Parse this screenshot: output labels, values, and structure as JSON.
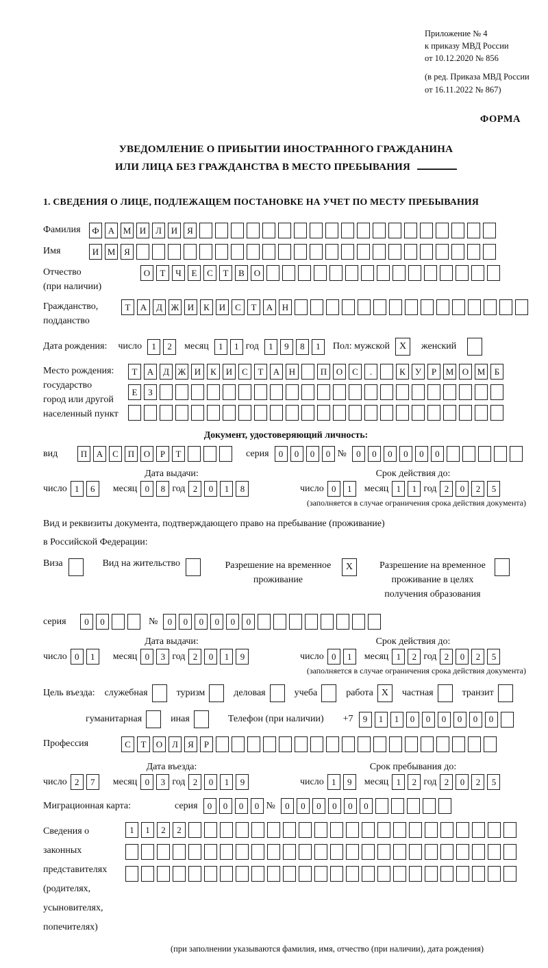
{
  "header": {
    "appendix_lines": [
      "Приложение № 4",
      "к приказу МВД России",
      "от 10.12.2020 № 856"
    ],
    "edit_lines": [
      "(в ред. Приказа МВД России",
      "от 16.11.2022 № 867)"
    ],
    "forma": "ФОРМА"
  },
  "title": {
    "line1": "УВЕДОМЛЕНИЕ О ПРИБЫТИИ ИНОСТРАННОГО ГРАЖДАНИНА",
    "line2": "ИЛИ ЛИЦА БЕЗ ГРАЖДАНСТВА В МЕСТО ПРЕБЫВАНИЯ"
  },
  "section1_heading": "1. СВЕДЕНИЯ О ЛИЦЕ, ПОДЛЕЖАЩЕМ ПОСТАНОВКЕ НА УЧЕТ ПО МЕСТУ ПРЕБЫВАНИЯ",
  "fields": {
    "surname": {
      "label": "Фамилия",
      "cells": 26,
      "value": "ФАМИЛИЯ"
    },
    "name": {
      "label": "Имя",
      "cells": 26,
      "value": "ИМЯ"
    },
    "patronymic": {
      "label1": "Отчество",
      "label2": "(при наличии)",
      "cells": 23,
      "value": "ОТЧЕСТВО"
    },
    "citizenship": {
      "label1": "Гражданство,",
      "label2": "подданство",
      "cells": 26,
      "value": "ТАДЖИКИСТАН"
    },
    "birth_date": {
      "label": "Дата рождения:",
      "day_label": "число",
      "day": {
        "cells": 2,
        "value": "12"
      },
      "month_label": "месяц",
      "month": {
        "cells": 2,
        "value": "11"
      },
      "year_label": "год",
      "year": {
        "cells": 4,
        "value": "1981"
      }
    },
    "sex": {
      "label": "Пол:",
      "male_label": "мужской",
      "male": "X",
      "female_label": "женский",
      "female": ""
    },
    "birth_place": {
      "label_lines": [
        "Место рождения:",
        "государство",
        "город или другой",
        "населенный пункт"
      ],
      "rows": [
        {
          "cells": 24,
          "value": "ТАДЖИКИСТАН ПОС. КУРМОМБ"
        },
        {
          "cells": 24,
          "value": "ЕЗ"
        },
        {
          "cells": 24,
          "value": ""
        }
      ]
    }
  },
  "identity_doc": {
    "section_title": "Документ, удостоверяющий личность:",
    "kind_label": "вид",
    "kind": {
      "cells": 10,
      "value": "ПАСПОРТ"
    },
    "series_label": "серия",
    "series": {
      "cells": 4,
      "value": "0000"
    },
    "number_label": "№",
    "number": {
      "cells": 11,
      "value": "000000"
    },
    "issue": {
      "title": "Дата выдачи:",
      "day_label": "число",
      "day": {
        "cells": 2,
        "value": "16"
      },
      "month_label": "месяц",
      "month": {
        "cells": 2,
        "value": "08"
      },
      "year_label": "год",
      "year": {
        "cells": 4,
        "value": "2018"
      }
    },
    "valid": {
      "title": "Срок действия до:",
      "day_label": "число",
      "day": {
        "cells": 2,
        "value": "01"
      },
      "month_label": "месяц",
      "month": {
        "cells": 2,
        "value": "11"
      },
      "year_label": "год",
      "year": {
        "cells": 4,
        "value": "2025"
      }
    },
    "footnote": "(заполняется в случае ограничения срока действия документа)"
  },
  "residence_doc": {
    "intro_line1": "Вид и реквизиты документа, подтверждающего право на пребывание (проживание)",
    "intro_line2": "в Российской Федерации:",
    "options": [
      {
        "label": "Виза",
        "checked": ""
      },
      {
        "label": "Вид на жительство",
        "checked": ""
      },
      {
        "label": "Разрешение на временное проживание",
        "checked": "X"
      },
      {
        "label": "Разрешение на временное проживание в целях получения образования",
        "checked": ""
      }
    ],
    "series_label": "серия",
    "series": {
      "cells": 4,
      "value": "00"
    },
    "number_label": "№",
    "number": {
      "cells": 14,
      "value": "000000"
    },
    "issue": {
      "title": "Дата выдачи:",
      "day_label": "число",
      "day": {
        "cells": 2,
        "value": "01"
      },
      "month_label": "месяц",
      "month": {
        "cells": 2,
        "value": "03"
      },
      "year_label": "год",
      "year": {
        "cells": 4,
        "value": "2019"
      }
    },
    "valid": {
      "title": "Срок действия до:",
      "day_label": "число",
      "day": {
        "cells": 2,
        "value": "01"
      },
      "month_label": "месяц",
      "month": {
        "cells": 2,
        "value": "12"
      },
      "year_label": "год",
      "year": {
        "cells": 4,
        "value": "2025"
      }
    },
    "footnote": "(заполняется в случае ограничения срока действия документа)"
  },
  "visit_purpose": {
    "label": "Цель въезда:",
    "row1": [
      {
        "label": "служебная",
        "checked": ""
      },
      {
        "label": "туризм",
        "checked": ""
      },
      {
        "label": "деловая",
        "checked": ""
      },
      {
        "label": "учеба",
        "checked": ""
      },
      {
        "label": "работа",
        "checked": "X"
      },
      {
        "label": "частная",
        "checked": ""
      },
      {
        "label": "транзит",
        "checked": ""
      }
    ],
    "row2": [
      {
        "label": "гуманитарная",
        "checked": ""
      },
      {
        "label": "иная",
        "checked": ""
      }
    ],
    "phone_label": "Телефон (при наличии)",
    "phone_prefix": "+7",
    "phone": {
      "cells": 10,
      "value": "911000000"
    }
  },
  "profession": {
    "label": "Профессия",
    "cells": 24,
    "value": "СТОЛЯР"
  },
  "entry": {
    "issue": {
      "title": "Дата въезда:",
      "day_label": "число",
      "day": {
        "cells": 2,
        "value": "27"
      },
      "month_label": "месяц",
      "month": {
        "cells": 2,
        "value": "03"
      },
      "year_label": "год",
      "year": {
        "cells": 4,
        "value": "2019"
      }
    },
    "valid": {
      "title": "Срок пребывания до:",
      "day_label": "число",
      "day": {
        "cells": 2,
        "value": "19"
      },
      "month_label": "месяц",
      "month": {
        "cells": 2,
        "value": "12"
      },
      "year_label": "год",
      "year": {
        "cells": 4,
        "value": "2025"
      }
    }
  },
  "migration_card": {
    "label": "Миграционная карта:",
    "series_label": "серия",
    "series": {
      "cells": 4,
      "value": "0000"
    },
    "number_label": "№",
    "number": {
      "cells": 11,
      "value": "000000"
    }
  },
  "representatives": {
    "label_lines": [
      "Сведения о",
      "законных",
      "представителях",
      "(родителях,",
      "усыновителях,",
      "попечителях)"
    ],
    "rows": [
      {
        "cells": 25,
        "value": "1122"
      },
      {
        "cells": 25,
        "value": ""
      },
      {
        "cells": 25,
        "value": ""
      }
    ],
    "footnote": "(при заполнении указываются фамилия, имя, отчество (при наличии), дата рождения)"
  }
}
